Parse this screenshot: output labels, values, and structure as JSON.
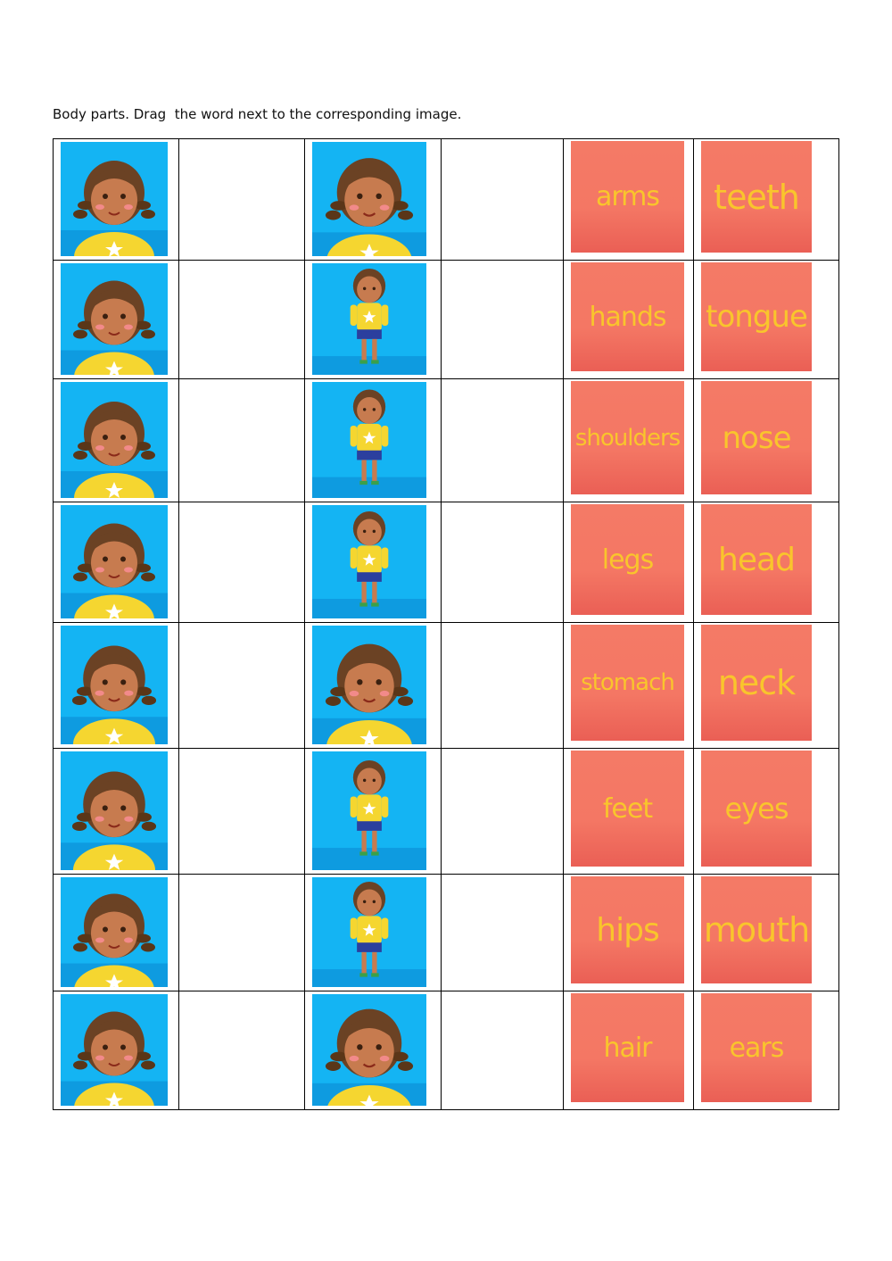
{
  "instructions": "Body parts. Drag  the word next to the corresponding image.",
  "rows": [
    {
      "left_pic": "girl-waving-hands-picture",
      "right_pic": "girl-touching-cheeks-picture",
      "word_a": "arms",
      "word_b": "teeth"
    },
    {
      "left_pic": "girl-pointing-ears-picture",
      "right_pic": "girl-touching-stomach-picture",
      "word_a": "hands",
      "word_b": "tongue"
    },
    {
      "left_pic": "girl-pointing-eyes-picture",
      "right_pic": "girl-touching-hips-picture",
      "word_a": "shoulders",
      "word_b": "nose"
    },
    {
      "left_pic": "girl-pointing-nose-picture",
      "right_pic": "girl-arms-out-picture",
      "word_a": "legs",
      "word_b": "head"
    },
    {
      "left_pic": "girl-open-mouth-picture",
      "right_pic": "girl-hands-down-picture",
      "word_a": "stomach",
      "word_b": "neck"
    },
    {
      "left_pic": "girl-showing-teeth-picture",
      "right_pic": "girl-pointing-feet-picture",
      "word_a": "feet",
      "word_b": "eyes"
    },
    {
      "left_pic": "girl-showing-tongue-picture",
      "right_pic": "girl-bending-legs-picture",
      "word_a": "hips",
      "word_b": "mouth"
    },
    {
      "left_pic": "girl-side-neck-picture",
      "right_pic": "girl-touching-head-picture",
      "word_a": "hair",
      "word_b": "ears"
    }
  ],
  "colors": {
    "tile": "#f47764",
    "word": "#f9c52c",
    "picture_bg": "#10aef0"
  }
}
